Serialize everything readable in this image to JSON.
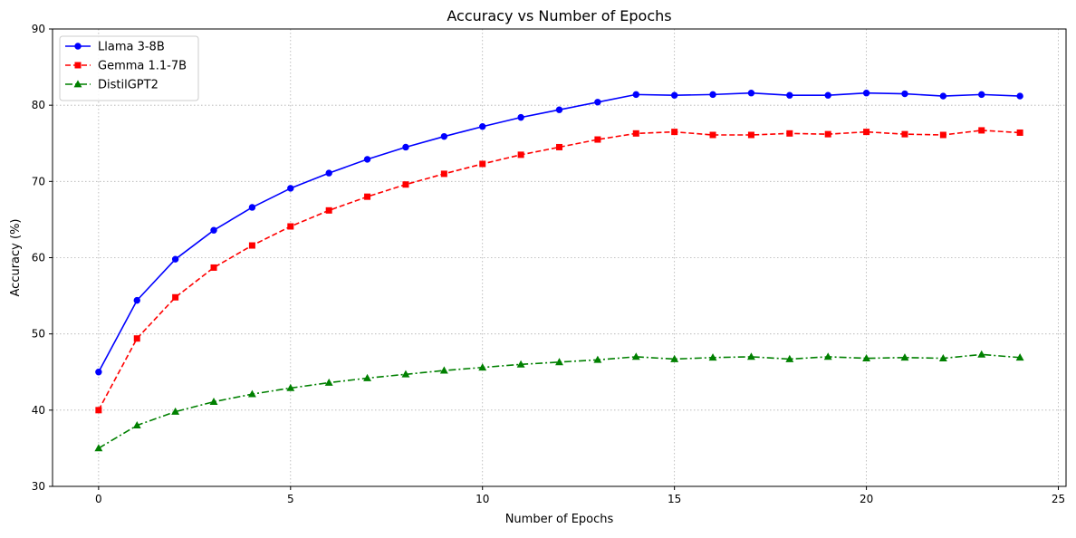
{
  "chart_data": {
    "type": "line",
    "title": "Accuracy vs Number of Epochs",
    "xlabel": "Number of Epochs",
    "ylabel": "Accuracy (%)",
    "xlim": [
      -1.2,
      25.2
    ],
    "ylim": [
      30,
      90
    ],
    "xticks": [
      0,
      5,
      10,
      15,
      20,
      25
    ],
    "yticks": [
      30,
      40,
      50,
      60,
      70,
      80,
      90
    ],
    "xtick_labels": [
      "0",
      "5",
      "10",
      "15",
      "20",
      "25"
    ],
    "ytick_labels": [
      "30",
      "40",
      "50",
      "60",
      "70",
      "80",
      "90"
    ],
    "grid": true,
    "legend_position": "upper-left",
    "x": [
      0,
      1,
      2,
      3,
      4,
      5,
      6,
      7,
      8,
      9,
      10,
      11,
      12,
      13,
      14,
      15,
      16,
      17,
      18,
      19,
      20,
      21,
      22,
      23,
      24
    ],
    "series": [
      {
        "name": "Llama 3-8B",
        "color": "#0000ff",
        "line_style": "solid",
        "marker": "circle",
        "values": [
          45.0,
          54.4,
          59.8,
          63.6,
          66.6,
          69.1,
          71.1,
          72.9,
          74.5,
          75.9,
          77.2,
          78.4,
          79.4,
          80.4,
          81.4,
          81.3,
          81.4,
          81.6,
          81.3,
          81.3,
          81.6,
          81.5,
          81.2,
          81.4,
          81.2
        ]
      },
      {
        "name": "Gemma 1.1-7B",
        "color": "#ff0000",
        "line_style": "dashed",
        "marker": "square",
        "values": [
          40.0,
          49.4,
          54.8,
          58.7,
          61.6,
          64.1,
          66.2,
          68.0,
          69.6,
          71.0,
          72.3,
          73.5,
          74.5,
          75.5,
          76.3,
          76.5,
          76.1,
          76.1,
          76.3,
          76.2,
          76.5,
          76.2,
          76.1,
          76.7,
          76.4
        ]
      },
      {
        "name": "DistilGPT2",
        "color": "#008000",
        "line_style": "dashdot",
        "marker": "triangle",
        "values": [
          35.0,
          38.0,
          39.8,
          41.1,
          42.1,
          42.9,
          43.6,
          44.2,
          44.7,
          45.2,
          45.6,
          46.0,
          46.3,
          46.6,
          47.0,
          46.7,
          46.9,
          47.0,
          46.7,
          47.0,
          46.8,
          46.9,
          46.8,
          47.3,
          46.9
        ]
      }
    ]
  }
}
